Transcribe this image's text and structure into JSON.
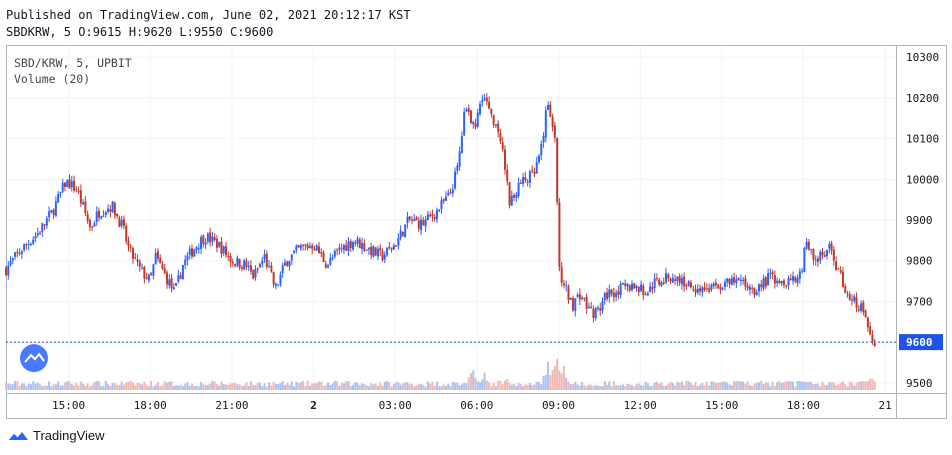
{
  "header": {
    "published": "Published on TradingView.com, June 02, 2021 20:12:17 KST",
    "ohlc": "SBDKRW, 5 O:9615 H:9620 L:9550 C:9600"
  },
  "legend": {
    "symbol": "SBD/KRW, 5, UPBIT",
    "volume": "Volume (20)"
  },
  "branding": {
    "logo": "tradingview-logo-icon",
    "name": "TradingView"
  },
  "colors": {
    "up": "#2962ff",
    "down": "#c0392b",
    "price_label_bg": "#1e53e5",
    "last_price_line": "#1e53e5"
  },
  "chart_data": {
    "type": "candlestick",
    "symbol": "SBD/KRW",
    "interval": "5",
    "exchange": "UPBIT",
    "last_price": 9600,
    "last_price_label": "9600",
    "y_ticks": [
      9500,
      9600,
      9700,
      9800,
      9900,
      10000,
      10100,
      10200,
      10300
    ],
    "x_ticks": [
      {
        "label": "15:00",
        "t": 15
      },
      {
        "label": "18:00",
        "t": 18
      },
      {
        "label": "21:00",
        "t": 21
      },
      {
        "label": "2",
        "t": 24,
        "bold": true
      },
      {
        "label": "03:00",
        "t": 27
      },
      {
        "label": "06:00",
        "t": 30
      },
      {
        "label": "09:00",
        "t": 33
      },
      {
        "label": "12:00",
        "t": 36
      },
      {
        "label": "15:00",
        "t": 39
      },
      {
        "label": "18:00",
        "t": 42
      },
      {
        "label": "21",
        "t": 45
      }
    ],
    "ylim": [
      9475,
      10330
    ],
    "xlim": [
      12.7,
      45.4
    ],
    "close_path": [
      [
        12.7,
        9780
      ],
      [
        13.3,
        9830
      ],
      [
        13.9,
        9870
      ],
      [
        14.4,
        9920
      ],
      [
        14.9,
        9995
      ],
      [
        15.3,
        9975
      ],
      [
        15.8,
        9880
      ],
      [
        16.1,
        9920
      ],
      [
        16.6,
        9935
      ],
      [
        17.0,
        9880
      ],
      [
        17.2,
        9830
      ],
      [
        17.6,
        9780
      ],
      [
        18.0,
        9750
      ],
      [
        18.2,
        9810
      ],
      [
        18.5,
        9770
      ],
      [
        18.9,
        9720
      ],
      [
        19.2,
        9790
      ],
      [
        19.6,
        9830
      ],
      [
        20.0,
        9860
      ],
      [
        20.5,
        9840
      ],
      [
        21.0,
        9800
      ],
      [
        21.5,
        9790
      ],
      [
        21.8,
        9760
      ],
      [
        22.2,
        9810
      ],
      [
        22.6,
        9730
      ],
      [
        23.0,
        9800
      ],
      [
        23.5,
        9830
      ],
      [
        24.0,
        9840
      ],
      [
        24.5,
        9790
      ],
      [
        25.0,
        9830
      ],
      [
        25.5,
        9850
      ],
      [
        26.0,
        9830
      ],
      [
        26.5,
        9810
      ],
      [
        27.0,
        9840
      ],
      [
        27.5,
        9900
      ],
      [
        28.0,
        9890
      ],
      [
        28.5,
        9920
      ],
      [
        29.0,
        9960
      ],
      [
        29.3,
        10030
      ],
      [
        29.6,
        10190
      ],
      [
        29.9,
        10120
      ],
      [
        30.2,
        10210
      ],
      [
        30.6,
        10150
      ],
      [
        31.0,
        10050
      ],
      [
        31.2,
        9940
      ],
      [
        31.5,
        9980
      ],
      [
        31.8,
        10000
      ],
      [
        32.1,
        10010
      ],
      [
        32.4,
        10080
      ],
      [
        32.6,
        10200
      ],
      [
        32.9,
        10090
      ],
      [
        33.0,
        9780
      ],
      [
        33.2,
        9740
      ],
      [
        33.5,
        9690
      ],
      [
        33.8,
        9720
      ],
      [
        34.1,
        9680
      ],
      [
        34.4,
        9670
      ],
      [
        34.8,
        9720
      ],
      [
        35.3,
        9730
      ],
      [
        35.8,
        9740
      ],
      [
        36.2,
        9720
      ],
      [
        36.6,
        9750
      ],
      [
        37.2,
        9760
      ],
      [
        37.8,
        9740
      ],
      [
        38.4,
        9730
      ],
      [
        39.0,
        9740
      ],
      [
        39.6,
        9750
      ],
      [
        40.2,
        9730
      ],
      [
        40.8,
        9760
      ],
      [
        41.4,
        9750
      ],
      [
        41.9,
        9770
      ],
      [
        42.1,
        9850
      ],
      [
        42.4,
        9800
      ],
      [
        42.7,
        9810
      ],
      [
        43.0,
        9830
      ],
      [
        43.3,
        9770
      ],
      [
        43.6,
        9720
      ],
      [
        43.9,
        9700
      ],
      [
        44.2,
        9680
      ],
      [
        44.4,
        9620
      ],
      [
        44.6,
        9600
      ]
    ],
    "volume_spikes": [
      {
        "t": 29.8,
        "v": 0.6
      },
      {
        "t": 30.3,
        "v": 0.45
      },
      {
        "t": 31.1,
        "v": 0.35
      },
      {
        "t": 32.6,
        "v": 0.75
      },
      {
        "t": 32.9,
        "v": 1.0
      },
      {
        "t": 33.2,
        "v": 0.6
      },
      {
        "t": 42.0,
        "v": 0.3
      },
      {
        "t": 44.1,
        "v": 0.3
      },
      {
        "t": 44.5,
        "v": 0.45
      }
    ]
  }
}
